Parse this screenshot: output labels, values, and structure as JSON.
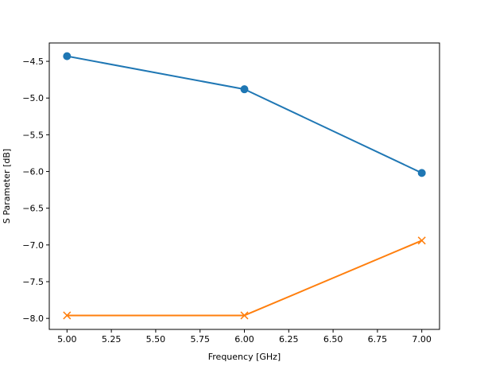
{
  "chart_data": {
    "type": "line",
    "title": "",
    "xlabel": "Frequency [GHz]",
    "ylabel": "S Parameter [dB]",
    "xlim": [
      4.9,
      7.1
    ],
    "ylim": [
      -8.15,
      -4.25
    ],
    "xticks": [
      5.0,
      5.25,
      5.5,
      5.75,
      6.0,
      6.25,
      6.5,
      6.75,
      7.0
    ],
    "xtick_labels": [
      "5.00",
      "5.25",
      "5.50",
      "5.75",
      "6.00",
      "6.25",
      "6.50",
      "6.75",
      "7.00"
    ],
    "yticks": [
      -4.5,
      -5.0,
      -5.5,
      -6.0,
      -6.5,
      -7.0,
      -7.5,
      -8.0
    ],
    "ytick_labels": [
      "−4.5",
      "−5.0",
      "−5.5",
      "−6.0",
      "−6.5",
      "−7.0",
      "−7.5",
      "−8.0"
    ],
    "grid": false,
    "legend": "none",
    "series": [
      {
        "marker": "circle",
        "color": "#1f77b4",
        "x": [
          5.0,
          6.0,
          7.0
        ],
        "values": [
          -4.43,
          -4.88,
          -6.02
        ]
      },
      {
        "marker": "x",
        "color": "#ff7f0e",
        "x": [
          5.0,
          6.0,
          7.0
        ],
        "values": [
          -7.96,
          -7.96,
          -6.94
        ]
      }
    ]
  }
}
